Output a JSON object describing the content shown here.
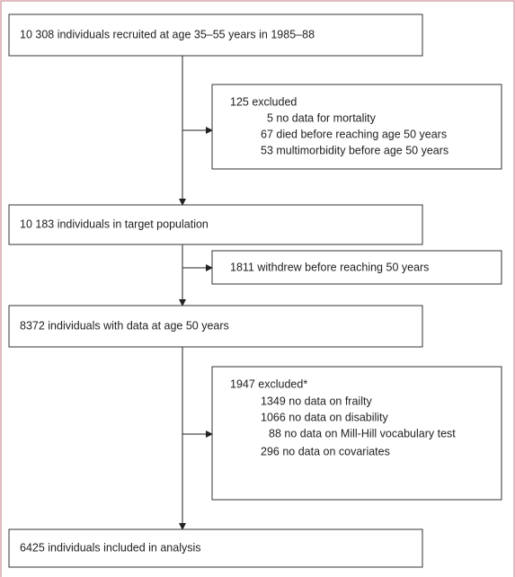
{
  "main_boxes": [
    "10 308 individuals recruited at age 35–55 years in 1985–88",
    "10 183 individuals in target population",
    "8372 individuals with data at age 50 years",
    "6425 individuals included in analysis"
  ],
  "side_boxes": [
    {
      "title": "125 excluded",
      "items": [
        "5 no data for mortality",
        "67 died before reaching age 50 years",
        "53 multimorbidity before age 50 years"
      ]
    },
    {
      "title": "1811 withdrew before reaching 50 years",
      "items": []
    },
    {
      "title": "1947 excluded*",
      "items": [
        "1349 no data on frailty",
        "1066 no data on disability",
        "88 no data on Mill-Hill vocabulary test",
        "296 no data on covariates"
      ]
    }
  ]
}
